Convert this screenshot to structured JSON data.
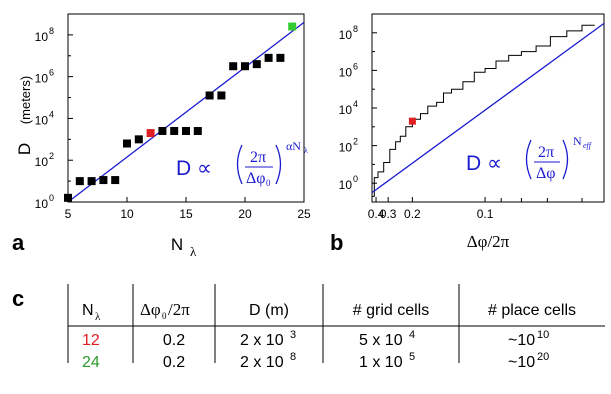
{
  "chart_data": [
    {
      "type": "scatter",
      "panel_label": "a",
      "ylabel_main": "D",
      "ylabel_unit": "(meters)",
      "xlabel_main": "N",
      "xlabel_sub": "λ",
      "xlim": [
        5,
        25
      ],
      "ylim_log10": [
        0,
        9
      ],
      "y_scale": "log",
      "xticks": [
        5,
        10,
        15,
        20,
        25
      ],
      "ytick_exponents": [
        0,
        2,
        4,
        6,
        8
      ],
      "ytick_base": "10",
      "points": [
        {
          "x": 5,
          "y_log10": 0.2,
          "color": "#000000"
        },
        {
          "x": 6,
          "y_log10": 1.0,
          "color": "#000000"
        },
        {
          "x": 7,
          "y_log10": 1.0,
          "color": "#000000"
        },
        {
          "x": 8,
          "y_log10": 1.05,
          "color": "#000000"
        },
        {
          "x": 9,
          "y_log10": 1.05,
          "color": "#000000"
        },
        {
          "x": 10,
          "y_log10": 2.8,
          "color": "#000000"
        },
        {
          "x": 11,
          "y_log10": 3.0,
          "color": "#000000"
        },
        {
          "x": 12,
          "y_log10": 3.3,
          "color": "#e02020"
        },
        {
          "x": 13,
          "y_log10": 3.4,
          "color": "#000000"
        },
        {
          "x": 14,
          "y_log10": 3.4,
          "color": "#000000"
        },
        {
          "x": 15,
          "y_log10": 3.4,
          "color": "#000000"
        },
        {
          "x": 16,
          "y_log10": 3.4,
          "color": "#000000"
        },
        {
          "x": 17,
          "y_log10": 5.1,
          "color": "#000000"
        },
        {
          "x": 18,
          "y_log10": 5.1,
          "color": "#000000"
        },
        {
          "x": 19,
          "y_log10": 6.5,
          "color": "#000000"
        },
        {
          "x": 20,
          "y_log10": 6.5,
          "color": "#000000"
        },
        {
          "x": 21,
          "y_log10": 6.6,
          "color": "#000000"
        },
        {
          "x": 22,
          "y_log10": 6.9,
          "color": "#000000"
        },
        {
          "x": 23,
          "y_log10": 6.9,
          "color": "#000000"
        },
        {
          "x": 24,
          "y_log10": 8.4,
          "color": "#33cc33"
        }
      ],
      "fit_line": {
        "x": [
          5,
          25
        ],
        "y_log10": [
          0.0,
          8.6
        ],
        "color": "#1b1bd0"
      },
      "formula": {
        "lhs": "D ∝",
        "numerator": "2π",
        "denominator": "Δφ",
        "denominator_sub": "0",
        "exponent": "αN",
        "exponent_sub": "λ"
      }
    },
    {
      "type": "line",
      "panel_label": "b",
      "xlabel": "Δφ/2π",
      "x_scale": "reciprocal",
      "xticks": [
        "0.4",
        "0.3",
        "0.2",
        "0.1"
      ],
      "xtick_values": [
        0.4,
        0.3,
        0.2,
        0.1
      ],
      "minor_xtick_values": [
        0.09,
        0.08,
        0.07,
        0.06
      ],
      "xlim": [
        0.45,
        0.055
      ],
      "ylim_log10": [
        -1,
        9
      ],
      "y_scale": "log",
      "ytick_exponents": [
        0,
        2,
        4,
        6,
        8
      ],
      "ytick_base": "10",
      "staircase": {
        "x": [
          0.45,
          0.42,
          0.42,
          0.38,
          0.38,
          0.33,
          0.33,
          0.29,
          0.29,
          0.26,
          0.26,
          0.24,
          0.24,
          0.22,
          0.22,
          0.2,
          0.2,
          0.18,
          0.18,
          0.165,
          0.165,
          0.15,
          0.15,
          0.14,
          0.14,
          0.13,
          0.13,
          0.118,
          0.118,
          0.108,
          0.108,
          0.1,
          0.1,
          0.093,
          0.093,
          0.086,
          0.086,
          0.08,
          0.08,
          0.074,
          0.074,
          0.069,
          0.069,
          0.064,
          0.064,
          0.06,
          0.06,
          0.057
        ],
        "y_log10": [
          -0.7,
          -0.7,
          0.3,
          0.3,
          0.6,
          0.6,
          1.1,
          1.1,
          1.8,
          1.8,
          2.2,
          2.2,
          2.5,
          2.5,
          3.0,
          3.0,
          3.4,
          3.4,
          3.7,
          3.7,
          4.1,
          4.1,
          4.3,
          4.3,
          4.8,
          4.8,
          5.0,
          5.0,
          5.4,
          5.4,
          5.9,
          5.9,
          6.1,
          6.1,
          6.5,
          6.5,
          6.8,
          6.8,
          7.0,
          7.0,
          7.3,
          7.3,
          7.8,
          7.8,
          8.1,
          8.1,
          8.4,
          8.4
        ]
      },
      "highlight": {
        "x": 0.2,
        "y_log10": 3.3,
        "color": "#e02020"
      },
      "fit_line": {
        "x": [
          0.45,
          0.055
        ],
        "y_log10": [
          -0.5,
          8.5
        ],
        "color": "#1b1bd0"
      },
      "formula": {
        "lhs": "D ∝",
        "numerator": "2π",
        "denominator": "Δφ",
        "exponent": "N",
        "exponent_sub": "eff"
      }
    },
    {
      "type": "table",
      "panel_label": "c",
      "columns": [
        {
          "main": "N",
          "sub": "λ"
        },
        {
          "main": "Δφ",
          "sub": "0",
          "tail": "/2π"
        },
        {
          "main": "D (m)"
        },
        {
          "main": "# grid cells"
        },
        {
          "main": "# place cells"
        }
      ],
      "rows": [
        {
          "color": "#e02020",
          "n": "12",
          "dphi": "0.2",
          "d_base": "2 x 10",
          "d_exp": "3",
          "grid_base": "5 x 10",
          "grid_exp": "4",
          "place_base": "~10",
          "place_exp": "10"
        },
        {
          "color": "#2a9a2a",
          "n": "24",
          "dphi": "0.2",
          "d_base": "2 x 10",
          "d_exp": "8",
          "grid_base": "1 x 10",
          "grid_exp": "5",
          "place_base": "~10",
          "place_exp": "20"
        }
      ]
    }
  ]
}
